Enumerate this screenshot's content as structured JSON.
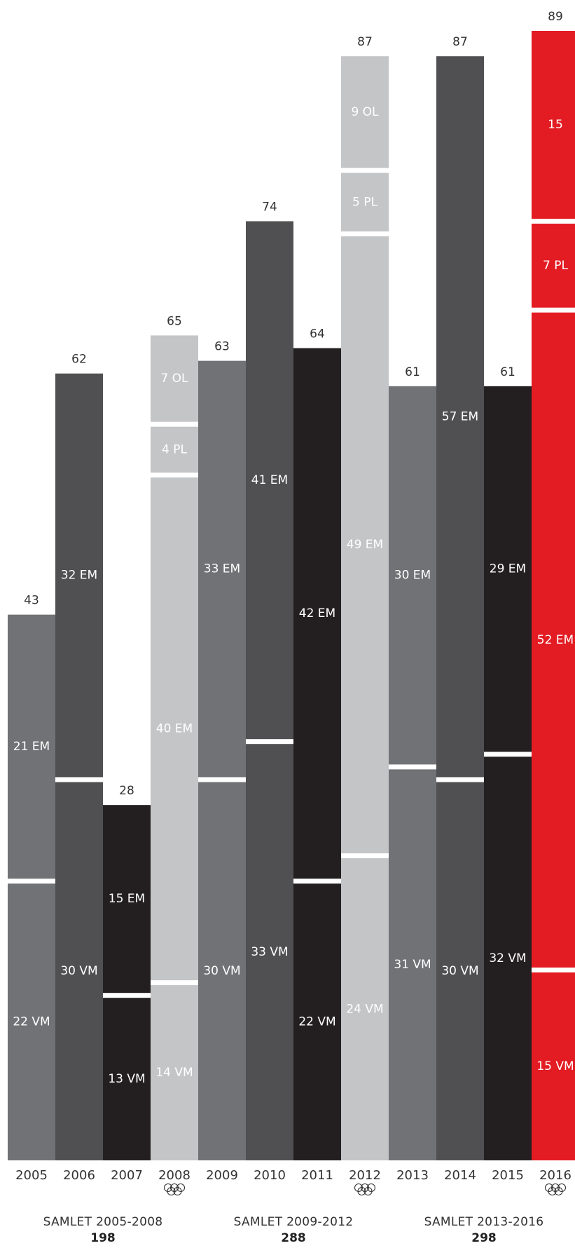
{
  "chart_data": {
    "type": "stacked-bar",
    "ylim": [
      0,
      89
    ],
    "grid": false,
    "legend": "none",
    "categories": [
      "2005",
      "2006",
      "2007",
      "2008",
      "2009",
      "2010",
      "2011",
      "2012",
      "2013",
      "2014",
      "2015",
      "2016"
    ],
    "totals": [
      43,
      62,
      28,
      65,
      63,
      74,
      64,
      87,
      61,
      87,
      61,
      89
    ],
    "olympic_years": [
      "2008",
      "2012",
      "2016"
    ],
    "stacks": [
      {
        "year": "2005",
        "color": "#717275",
        "segments": [
          {
            "value": 22,
            "label": "22 VM"
          },
          {
            "value": 21,
            "label": "21 EM"
          }
        ]
      },
      {
        "year": "2006",
        "color": "#505052",
        "segments": [
          {
            "value": 30,
            "label": "30 VM"
          },
          {
            "value": 32,
            "label": "32 EM"
          }
        ]
      },
      {
        "year": "2007",
        "color": "#231f20",
        "segments": [
          {
            "value": 13,
            "label": "13 VM"
          },
          {
            "value": 15,
            "label": "15 EM"
          }
        ]
      },
      {
        "year": "2008",
        "color": "#c4c5c7",
        "segments": [
          {
            "value": 14,
            "label": "14 VM"
          },
          {
            "value": 40,
            "label": "40 EM"
          },
          {
            "value": 4,
            "label": "4 PL"
          },
          {
            "value": 7,
            "label": "7 OL"
          }
        ]
      },
      {
        "year": "2009",
        "color": "#717275",
        "segments": [
          {
            "value": 30,
            "label": "30 VM"
          },
          {
            "value": 33,
            "label": "33 EM"
          }
        ]
      },
      {
        "year": "2010",
        "color": "#505052",
        "segments": [
          {
            "value": 33,
            "label": "33 VM"
          },
          {
            "value": 41,
            "label": "41 EM"
          }
        ]
      },
      {
        "year": "2011",
        "color": "#231f20",
        "segments": [
          {
            "value": 22,
            "label": "22 VM"
          },
          {
            "value": 42,
            "label": "42 EM"
          }
        ]
      },
      {
        "year": "2012",
        "color": "#c4c5c7",
        "segments": [
          {
            "value": 24,
            "label": "24 VM"
          },
          {
            "value": 49,
            "label": "49 EM"
          },
          {
            "value": 5,
            "label": "5 PL"
          },
          {
            "value": 9,
            "label": "9 OL"
          }
        ]
      },
      {
        "year": "2013",
        "color": "#717275",
        "segments": [
          {
            "value": 31,
            "label": "31 VM"
          },
          {
            "value": 30,
            "label": "30 EM"
          }
        ]
      },
      {
        "year": "2014",
        "color": "#505052",
        "segments": [
          {
            "value": 30,
            "label": "30 VM"
          },
          {
            "value": 57,
            "label": "57 EM"
          }
        ]
      },
      {
        "year": "2015",
        "color": "#231f20",
        "segments": [
          {
            "value": 32,
            "label": "32 VM"
          },
          {
            "value": 29,
            "label": "29 EM"
          }
        ]
      },
      {
        "year": "2016",
        "color": "#e31b23",
        "segments": [
          {
            "value": 15,
            "label": "15 VM"
          },
          {
            "value": 52,
            "label": "52 EM"
          },
          {
            "value": 7,
            "label": "7 PL"
          },
          {
            "value": 15,
            "label": "15"
          }
        ]
      }
    ],
    "periods": [
      {
        "label": "SAMLET 2005-2008",
        "total": "198",
        "years": [
          "2005",
          "2008"
        ]
      },
      {
        "label": "SAMLET 2009-2012",
        "total": "288",
        "years": [
          "2009",
          "2012"
        ]
      },
      {
        "label": "SAMLET 2013-2016",
        "total": "298",
        "years": [
          "2013",
          "2016"
        ]
      }
    ]
  }
}
